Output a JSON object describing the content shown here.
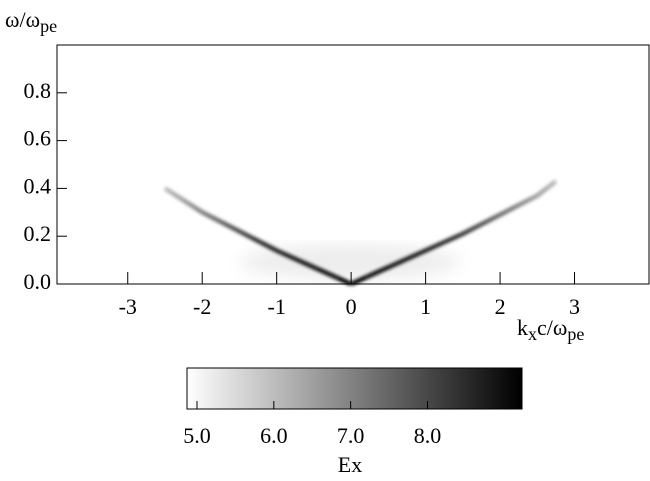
{
  "chart_data": {
    "type": "heatmap",
    "ylabel_parts": [
      "ω/ω",
      "pe"
    ],
    "xlabel_parts": [
      "k",
      "x",
      "c/ω",
      "pe"
    ],
    "xlim": [
      -3.95,
      4.0
    ],
    "ylim": [
      0,
      1.0
    ],
    "xticks": [
      -3,
      -2,
      -1,
      0,
      1,
      2,
      3
    ],
    "yticks": [
      {
        "value": 0,
        "label": "0.0"
      },
      0.2,
      0.4,
      0.6,
      0.8
    ],
    "series": [
      {
        "x": [
          0,
          -0.5,
          -1,
          -1.5,
          -2,
          -2.5
        ],
        "values": [
          0,
          0.07,
          0.14,
          0.22,
          0.3,
          0.4
        ]
      },
      {
        "x": [
          0,
          0.5,
          1,
          1.5,
          2,
          2.5,
          2.75
        ],
        "values": [
          0,
          0.07,
          0.14,
          0.21,
          0.29,
          0.37,
          0.43
        ]
      }
    ],
    "colorbar": {
      "label": "Ex",
      "clim": [
        4.87,
        9.23
      ],
      "ticks": [
        {
          "value": 5,
          "label": "5.0"
        },
        {
          "value": 6,
          "label": "6.0"
        },
        {
          "value": 7,
          "label": "7.0"
        },
        {
          "value": 8,
          "label": "8.0"
        }
      ]
    }
  }
}
